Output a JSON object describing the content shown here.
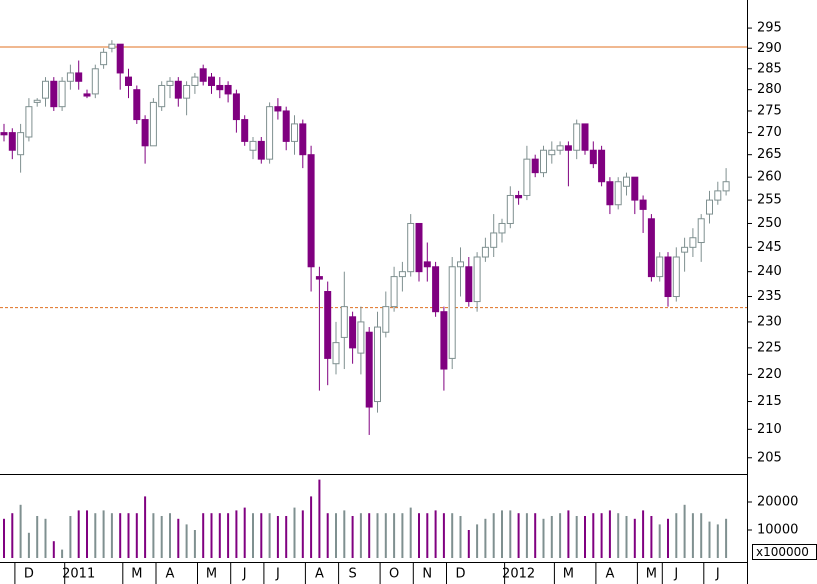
{
  "chart_data": {
    "type": "candlestick",
    "categories": [
      null,
      null,
      null,
      "D",
      null,
      null,
      null,
      null,
      null,
      "2011",
      null,
      null,
      null,
      null,
      null,
      null,
      "M",
      null,
      null,
      null,
      "A",
      null,
      null,
      null,
      null,
      "M",
      null,
      null,
      null,
      "J",
      null,
      null,
      null,
      "J",
      null,
      null,
      null,
      null,
      "A",
      null,
      null,
      null,
      "S",
      null,
      null,
      null,
      null,
      "O",
      null,
      null,
      null,
      "N",
      null,
      null,
      null,
      "D",
      null,
      null,
      null,
      null,
      null,
      null,
      "2012",
      null,
      null,
      null,
      null,
      null,
      "M",
      null,
      null,
      null,
      null,
      "A",
      null,
      null,
      null,
      null,
      "M",
      null,
      null,
      "J",
      null,
      null,
      null,
      null,
      "J",
      null
    ],
    "open": [
      270,
      270,
      265,
      269,
      277,
      278,
      282,
      276,
      282,
      284,
      279,
      279,
      286,
      290,
      291,
      283,
      280,
      273,
      267,
      276,
      281,
      282,
      278,
      281,
      285,
      283,
      281,
      281,
      279,
      273,
      266,
      268,
      264,
      276,
      275,
      268,
      272,
      265,
      239,
      236,
      222,
      227,
      231,
      224,
      228,
      215,
      228,
      233,
      239,
      240,
      250,
      242,
      241,
      232,
      223,
      241,
      241,
      234,
      243,
      245,
      248,
      250,
      256,
      256,
      264,
      261,
      265,
      266,
      267,
      266,
      272,
      266,
      266,
      259,
      254,
      258,
      260,
      255,
      251,
      239,
      243,
      235,
      244,
      245,
      246,
      252,
      255,
      257
    ],
    "high": [
      272,
      271,
      272,
      278,
      278,
      283,
      283,
      283,
      286,
      287,
      280,
      286,
      290,
      292,
      291,
      285,
      281,
      274,
      278,
      282,
      283,
      283,
      282,
      284,
      286,
      284,
      283,
      282,
      280,
      274,
      269,
      269,
      277,
      278,
      276,
      274,
      273,
      267,
      241,
      238,
      230,
      240,
      232,
      233,
      229,
      232,
      236,
      241,
      242,
      252,
      250,
      246,
      242,
      233,
      243,
      245,
      243,
      244,
      247,
      252,
      251,
      258,
      257,
      267,
      265,
      267,
      268,
      268,
      268,
      273,
      272,
      268,
      267,
      260,
      260,
      261,
      260,
      256,
      252,
      244,
      244,
      245,
      247,
      249,
      252,
      257,
      259,
      262
    ],
    "low": [
      268,
      264,
      261,
      268,
      276,
      276,
      275,
      275,
      280,
      280,
      278,
      278,
      285,
      289,
      280,
      278,
      272,
      263,
      267,
      275,
      278,
      276,
      274,
      279,
      281,
      279,
      278,
      277,
      270,
      267,
      264,
      263,
      263,
      273,
      266,
      265,
      262,
      236,
      217,
      218,
      220,
      221,
      222,
      220,
      209,
      213,
      227,
      232,
      236,
      239,
      238,
      238,
      231,
      217,
      221,
      235,
      233,
      232,
      242,
      243,
      246,
      249,
      254,
      255,
      260,
      260,
      263,
      265,
      258,
      264,
      265,
      262,
      258,
      252,
      253,
      256,
      252,
      248,
      238,
      238,
      233,
      234,
      240,
      243,
      242,
      250,
      254,
      256
    ],
    "close": [
      269.5,
      266,
      270,
      276,
      277.5,
      282,
      276,
      282,
      284,
      282,
      278.5,
      285,
      289,
      291,
      284,
      281,
      273,
      267,
      277,
      281,
      282,
      278,
      281,
      283,
      282,
      281,
      280,
      279,
      273,
      268,
      268,
      264,
      276,
      275,
      268,
      272,
      265,
      241,
      238.5,
      223,
      226,
      233,
      225,
      230,
      214,
      229,
      233,
      239,
      240,
      250,
      240,
      241,
      232,
      221,
      241,
      242,
      234,
      243,
      245,
      248,
      250,
      256,
      255.5,
      264,
      261,
      266,
      266,
      267,
      266,
      272,
      266,
      263,
      259,
      254,
      259,
      260,
      255,
      253,
      239,
      243,
      235,
      243,
      245,
      247,
      251,
      255,
      257,
      259
    ],
    "volume": [
      14000,
      16000,
      19000,
      9000,
      15000,
      14000,
      6000,
      3000,
      15000,
      17000,
      17000,
      16000,
      17000,
      16000,
      16000,
      16000,
      16000,
      22000,
      16000,
      15000,
      16000,
      14000,
      12000,
      10000,
      16000,
      16000,
      16000,
      16000,
      17000,
      18000,
      16000,
      16000,
      16000,
      15000,
      15000,
      18000,
      17000,
      22000,
      28000,
      16000,
      16000,
      17000,
      15000,
      16000,
      16000,
      16000,
      16000,
      16000,
      16000,
      18000,
      16000,
      16000,
      17000,
      16000,
      16000,
      15000,
      10000,
      12000,
      14000,
      16000,
      17000,
      17000,
      16000,
      16000,
      16000,
      14000,
      15000,
      16000,
      17000,
      15000,
      15000,
      16000,
      16000,
      17000,
      16000,
      15000,
      14000,
      17000,
      15000,
      12000,
      14000,
      16000,
      19000,
      16000,
      16000,
      13000,
      12000,
      14000
    ],
    "up_color": "#7f9090",
    "down_color": "#800080",
    "log": true,
    "ylim": [
      202.2,
      302.1
    ],
    "yticks": [
      205,
      210,
      215,
      220,
      225,
      230,
      235,
      240,
      245,
      250,
      255,
      260,
      265,
      270,
      275,
      280,
      285,
      290,
      295
    ],
    "hlines": [
      {
        "value": 290.3,
        "color": "#e07020",
        "style": "solid"
      },
      {
        "value": 232.8,
        "color": "#e07020",
        "style": "dashed"
      }
    ],
    "volume_ylim": [
      -1430,
      30000
    ],
    "volume_yticks": [
      10000,
      20000
    ],
    "volume_unit_label": "x100000"
  }
}
